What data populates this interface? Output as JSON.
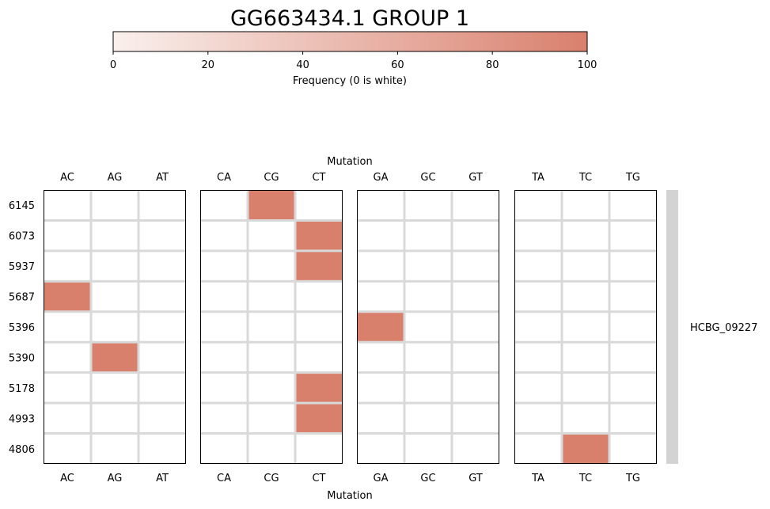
{
  "chart_data": {
    "type": "heatmap",
    "title": "GG663434.1 GROUP 1",
    "colorbar": {
      "label": "Frequency (0 is white)",
      "ticks": [
        0,
        20,
        40,
        60,
        80,
        100
      ],
      "range": [
        0,
        100
      ],
      "color_low": "#faf0ed",
      "color_high": "#d9806d",
      "orientation": "horizontal",
      "placement": "top"
    },
    "xlabel_top": "Mutation",
    "xlabel_bottom": "Mutation",
    "panels": [
      {
        "columns": [
          "AC",
          "AG",
          "AT"
        ]
      },
      {
        "columns": [
          "CA",
          "CG",
          "CT"
        ]
      },
      {
        "columns": [
          "GA",
          "GC",
          "GT"
        ]
      },
      {
        "columns": [
          "TA",
          "TC",
          "TG"
        ]
      }
    ],
    "rows": [
      "6145",
      "6073",
      "5937",
      "5687",
      "5396",
      "5390",
      "5178",
      "4993",
      "4806"
    ],
    "cells": [
      {
        "row": "6145",
        "mutation": "CG",
        "value": 100
      },
      {
        "row": "6073",
        "mutation": "CT",
        "value": 100
      },
      {
        "row": "5937",
        "mutation": "CT",
        "value": 100
      },
      {
        "row": "5687",
        "mutation": "AC",
        "value": 100
      },
      {
        "row": "5396",
        "mutation": "GA",
        "value": 100
      },
      {
        "row": "5390",
        "mutation": "AG",
        "value": 100
      },
      {
        "row": "5178",
        "mutation": "CT",
        "value": 100
      },
      {
        "row": "4993",
        "mutation": "CT",
        "value": 100
      },
      {
        "row": "4806",
        "mutation": "TC",
        "value": 100
      }
    ],
    "gene_annotation": {
      "label": "HCBG_09227",
      "color": "#d3d3d3"
    },
    "grid": true,
    "grid_color": "#d9d9d9"
  }
}
